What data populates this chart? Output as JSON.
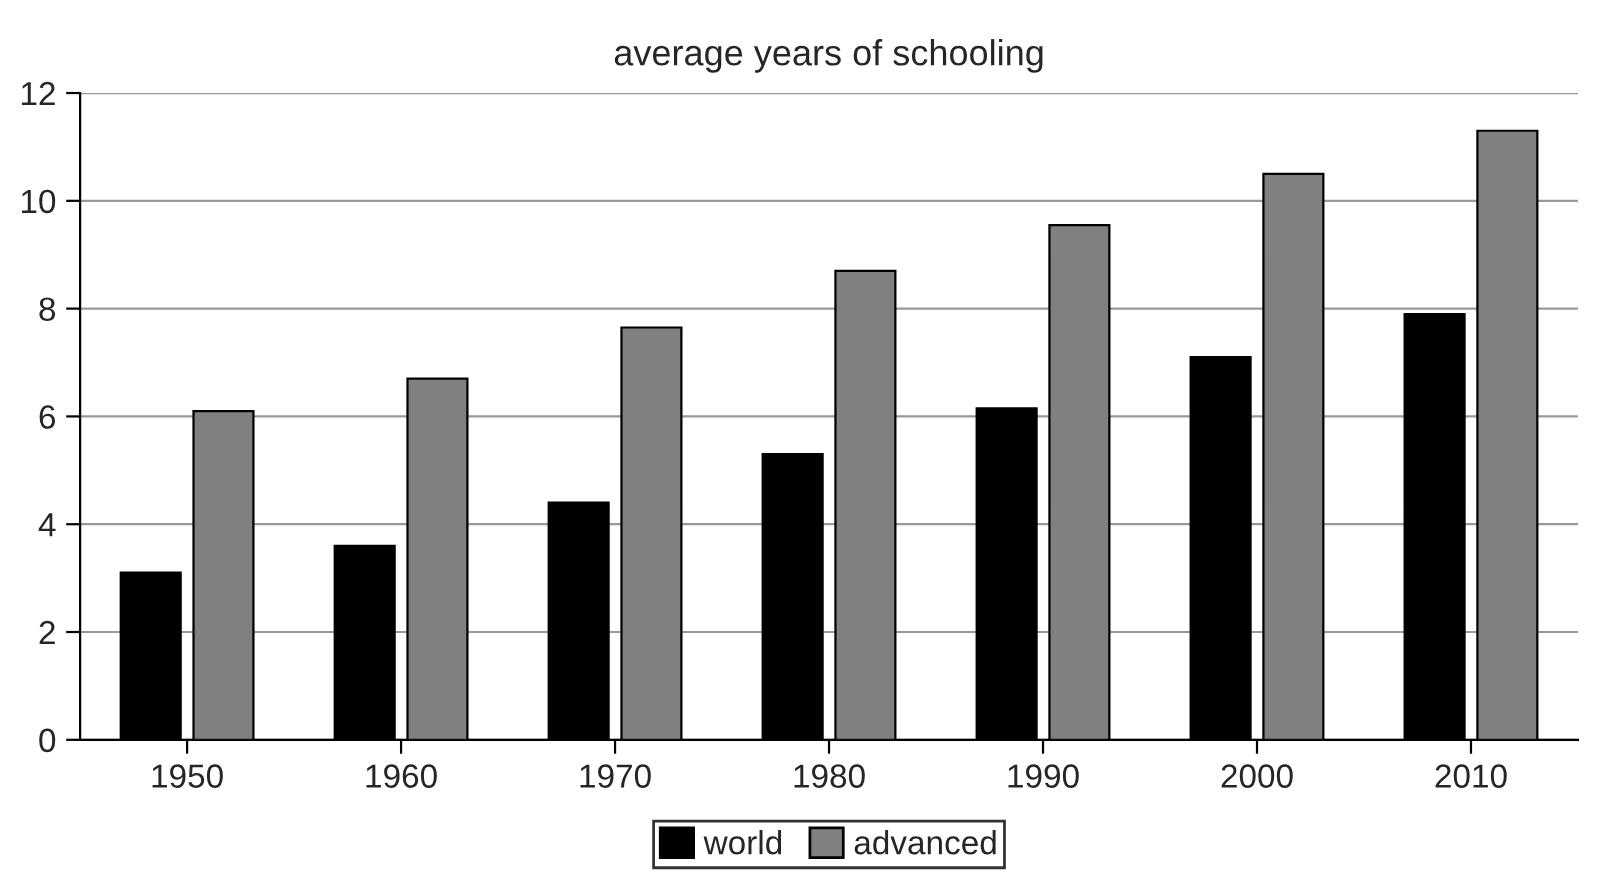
{
  "chart_data": {
    "type": "bar",
    "title": "average years of schooling",
    "categories": [
      "1950",
      "1960",
      "1970",
      "1980",
      "1990",
      "2000",
      "2010"
    ],
    "series": [
      {
        "name": "world",
        "color": "#000000",
        "values": [
          3.1,
          3.6,
          4.4,
          5.3,
          6.15,
          7.1,
          7.9
        ]
      },
      {
        "name": "advanced",
        "color": "#808080",
        "values": [
          6.1,
          6.7,
          7.65,
          8.7,
          9.55,
          10.5,
          11.3
        ]
      }
    ],
    "ylim": [
      0,
      12
    ],
    "yticks": [
      0,
      2,
      4,
      6,
      8,
      10,
      12
    ],
    "grid": "y",
    "legend": "bottom"
  }
}
